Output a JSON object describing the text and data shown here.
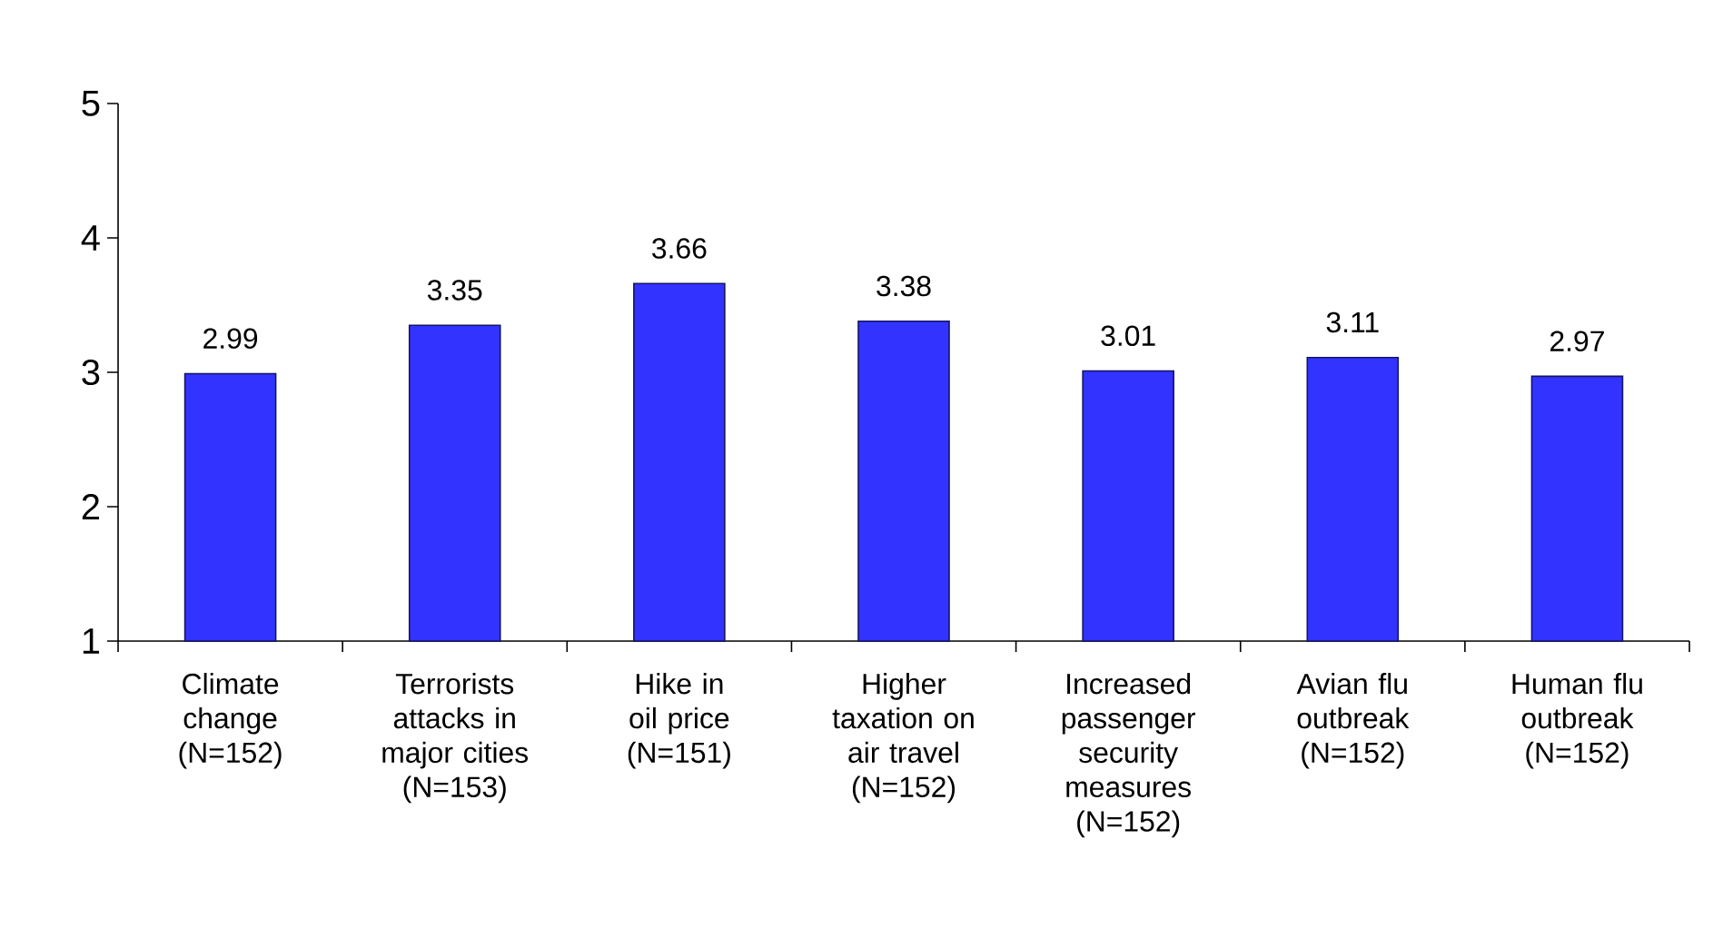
{
  "chart_data": {
    "type": "bar",
    "categories": [
      "Climate change (N=152)",
      "Terrorists attacks in major cities (N=153)",
      "Hike in oil price (N=151)",
      "Higher taxation on air travel (N=152)",
      "Increased passenger security measures (N=152)",
      "Avian flu outbreak (N=152)",
      "Human flu outbreak (N=152)"
    ],
    "values": [
      2.99,
      3.35,
      3.66,
      3.38,
      3.01,
      3.11,
      2.97
    ],
    "color": "#3333ff",
    "ylim": [
      1,
      5
    ],
    "yticks": [
      1,
      2,
      3,
      4,
      5
    ],
    "data_labels": true
  }
}
